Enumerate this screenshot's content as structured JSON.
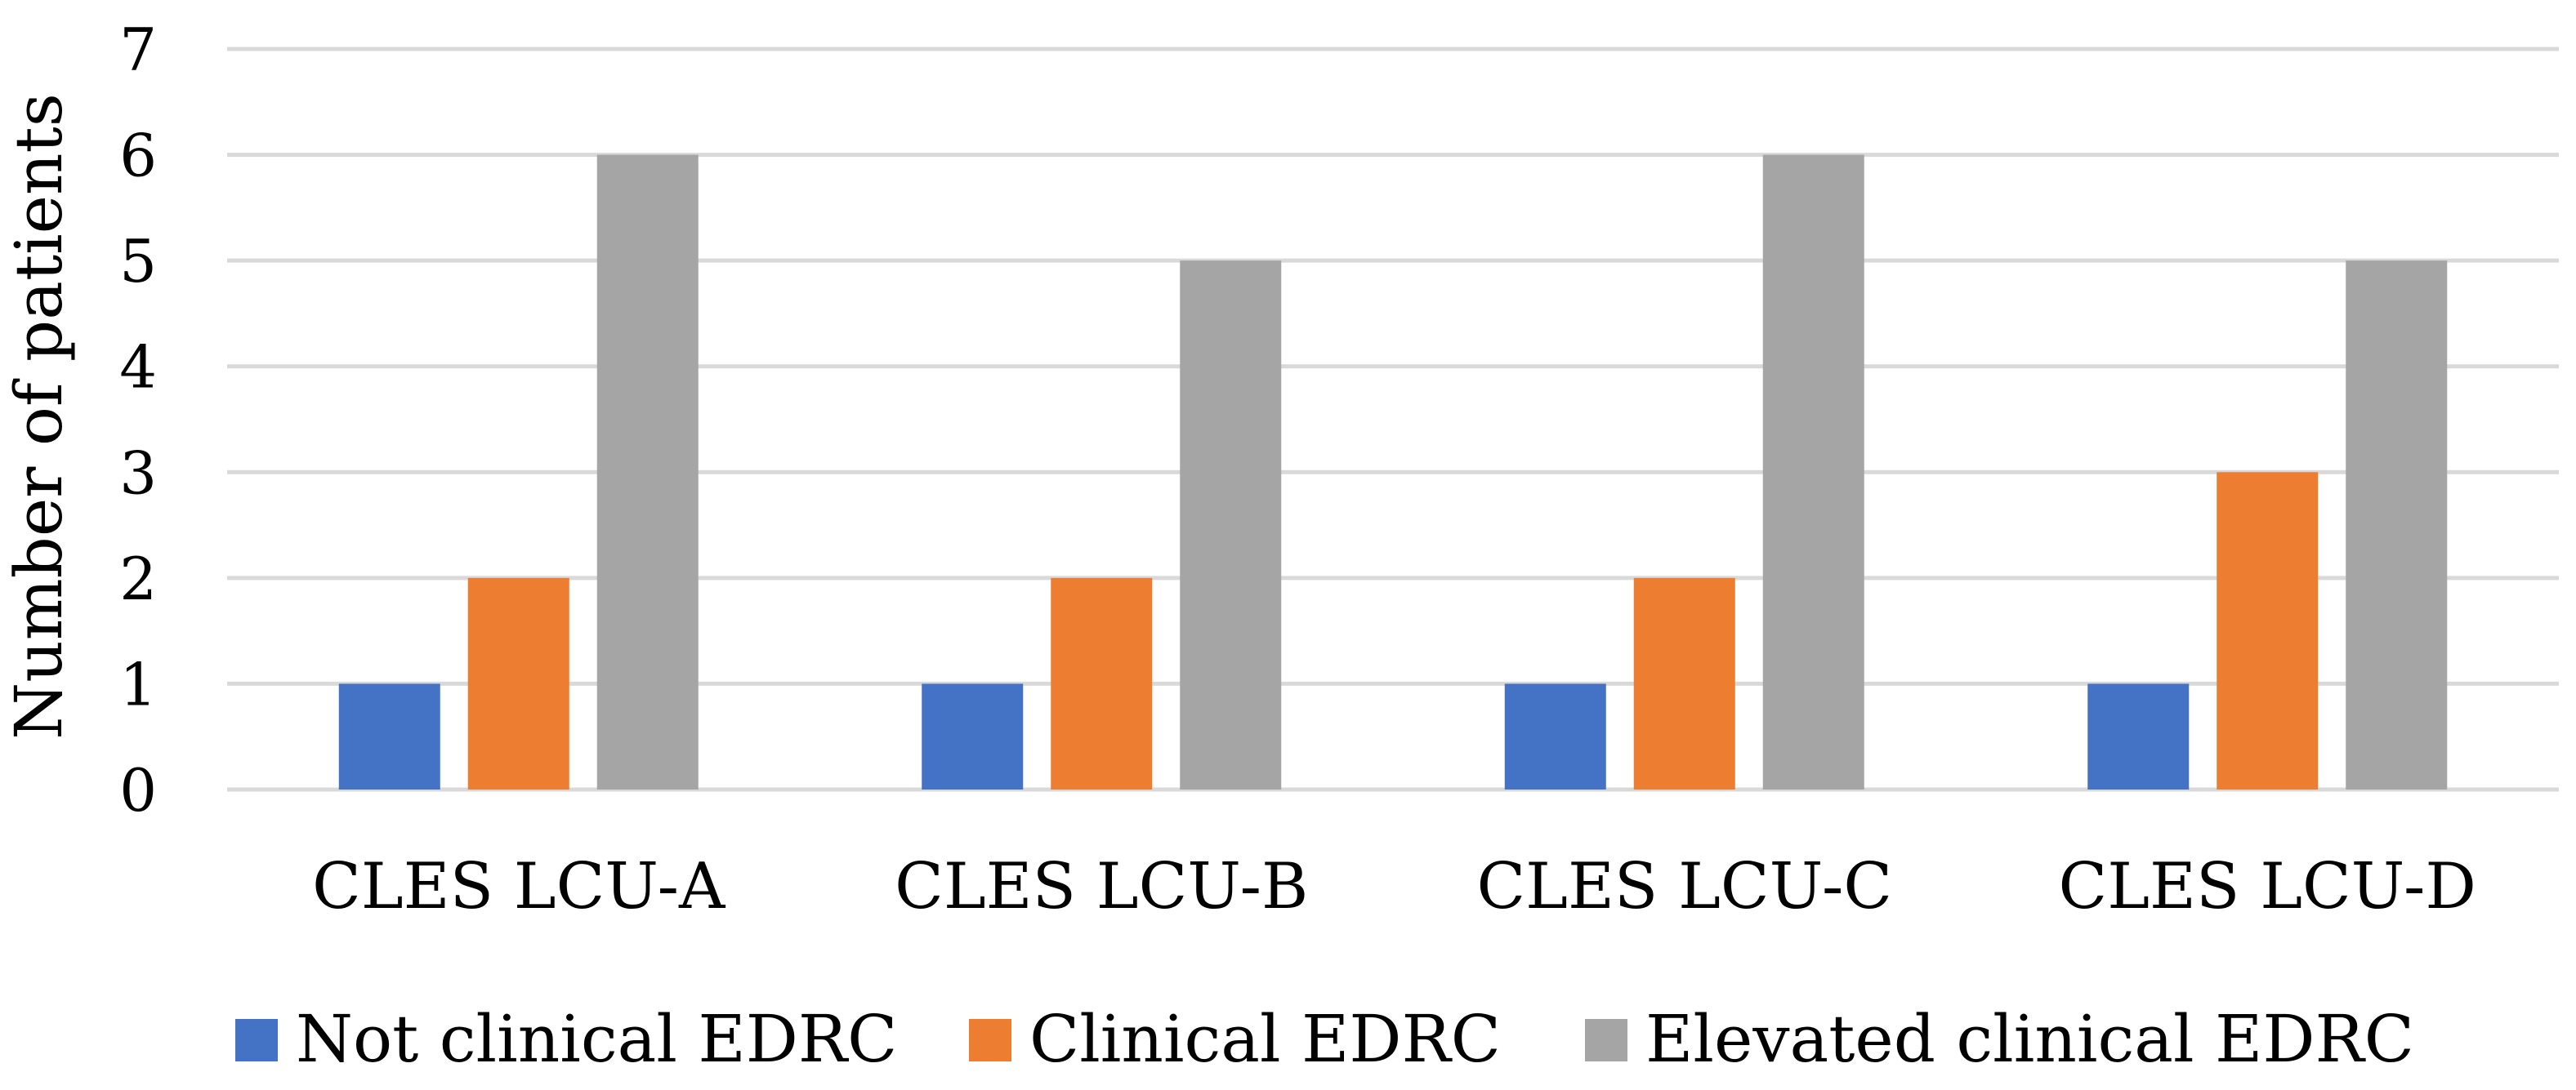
{
  "chart_data": {
    "type": "bar",
    "title": "",
    "xlabel": "",
    "ylabel": "Number of patients",
    "ylim": [
      0,
      7
    ],
    "yticks": [
      0,
      1,
      2,
      3,
      4,
      5,
      6,
      7
    ],
    "grid": true,
    "legend_position": "bottom",
    "categories": [
      "CLES LCU-A",
      "CLES LCU-B",
      "CLES LCU-C",
      "CLES LCU-D"
    ],
    "series": [
      {
        "name": "Not clinical EDRC",
        "color": "#4472C4",
        "values": [
          1,
          1,
          1,
          1
        ]
      },
      {
        "name": "Clinical EDRC",
        "color": "#ED7D31",
        "values": [
          2,
          2,
          2,
          3
        ]
      },
      {
        "name": "Elevated clinical EDRC",
        "color": "#A5A5A5",
        "values": [
          6,
          5,
          6,
          5
        ]
      }
    ]
  }
}
